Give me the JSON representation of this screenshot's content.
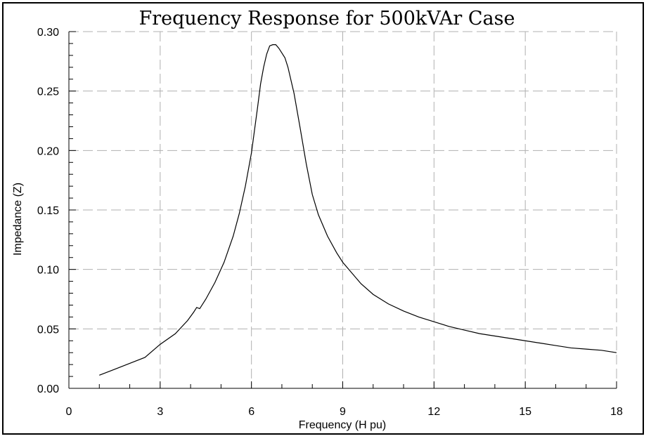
{
  "chart_data": {
    "type": "line",
    "title": "Frequency Response for 500kVAr Case",
    "xlabel": "Frequency (H pu)",
    "ylabel": "Impedance (Z)",
    "xlim": [
      0,
      18
    ],
    "ylim": [
      0,
      0.3
    ],
    "xticks": [
      0,
      3,
      6,
      9,
      12,
      15,
      18
    ],
    "xtick_labels": [
      "0",
      "3",
      "6",
      "9",
      "12",
      "15",
      "18"
    ],
    "yticks": [
      0,
      0.05,
      0.1,
      0.15,
      0.2,
      0.25,
      0.3
    ],
    "ytick_labels": [
      "0.00",
      "0.05",
      "0.10",
      "0.15",
      "0.20",
      "0.25",
      "0.30"
    ],
    "grid": true,
    "series": [
      {
        "name": "Impedance",
        "x": [
          1.0,
          1.5,
          2.0,
          2.5,
          3.0,
          3.5,
          3.9,
          4.1,
          4.2,
          4.3,
          4.5,
          4.8,
          5.1,
          5.4,
          5.6,
          5.8,
          6.0,
          6.1,
          6.2,
          6.3,
          6.4,
          6.5,
          6.6,
          6.7,
          6.8,
          6.9,
          7.0,
          7.1,
          7.2,
          7.4,
          7.6,
          7.8,
          8.0,
          8.2,
          8.5,
          8.8,
          9.0,
          9.3,
          9.6,
          10.0,
          10.5,
          11.0,
          11.5,
          12.0,
          12.5,
          13.0,
          13.5,
          14.0,
          14.5,
          15.0,
          15.5,
          16.0,
          16.5,
          17.0,
          17.5,
          18.0
        ],
        "y": [
          0.011,
          0.016,
          0.021,
          0.026,
          0.037,
          0.046,
          0.057,
          0.064,
          0.068,
          0.067,
          0.075,
          0.089,
          0.106,
          0.128,
          0.147,
          0.17,
          0.198,
          0.217,
          0.236,
          0.256,
          0.27,
          0.281,
          0.288,
          0.289,
          0.289,
          0.286,
          0.282,
          0.278,
          0.27,
          0.248,
          0.219,
          0.189,
          0.163,
          0.146,
          0.128,
          0.114,
          0.106,
          0.097,
          0.088,
          0.079,
          0.071,
          0.065,
          0.06,
          0.056,
          0.052,
          0.049,
          0.046,
          0.044,
          0.042,
          0.04,
          0.038,
          0.036,
          0.034,
          0.033,
          0.032,
          0.03
        ]
      }
    ]
  }
}
